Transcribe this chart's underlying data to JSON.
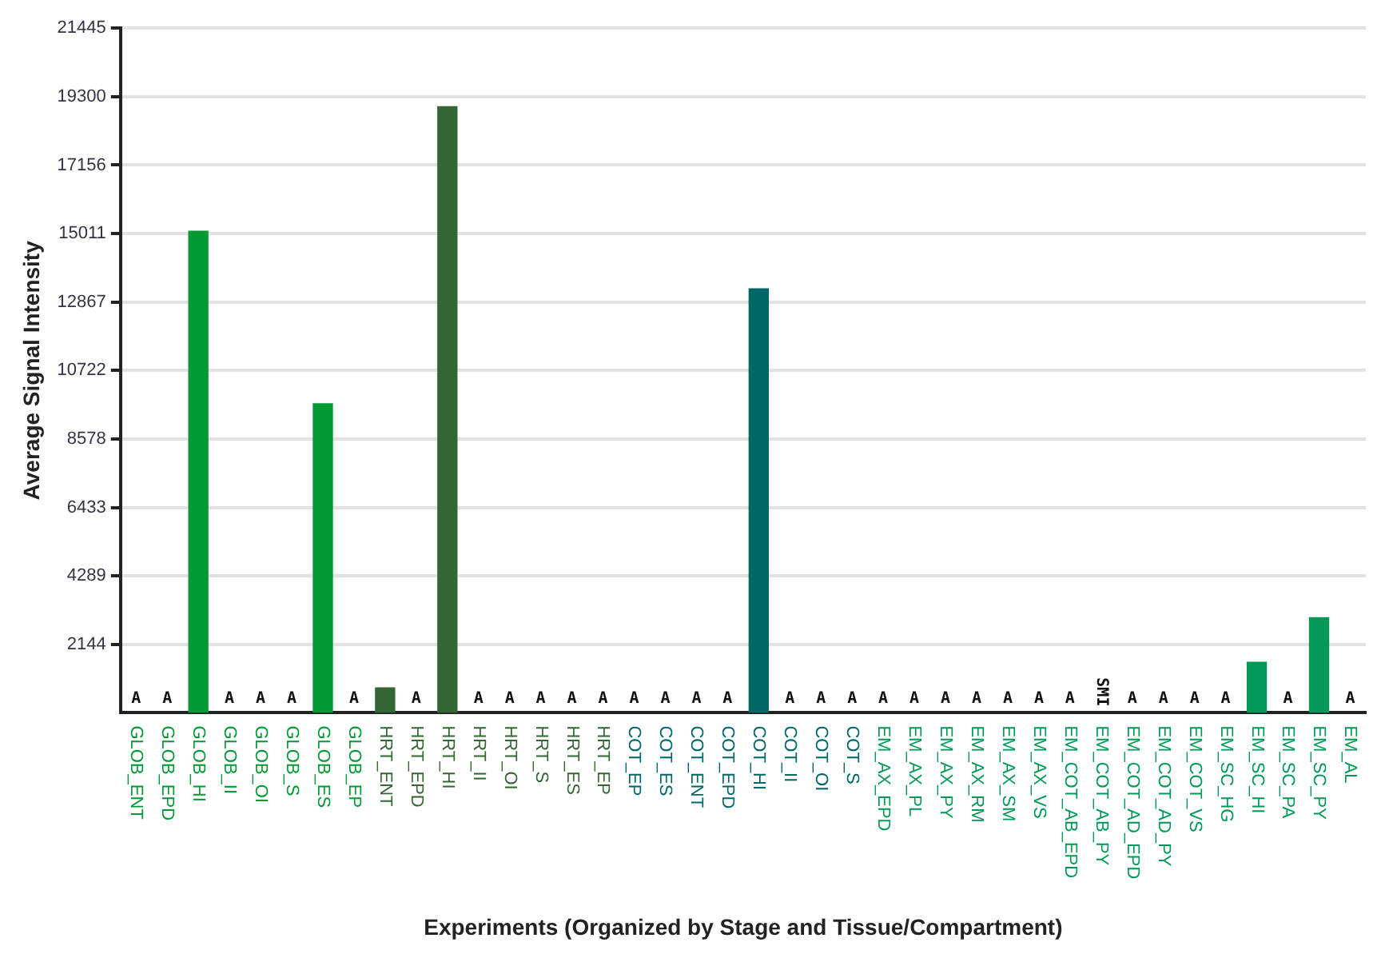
{
  "chart_data": {
    "type": "bar",
    "xlabel": "Experiments (Organized by Stage and Tissue/Compartment)",
    "ylabel": "Average Signal Intensity",
    "categories": [
      "GLOB_ENT",
      "GLOB_EPD",
      "GLOB_HI",
      "GLOB_II",
      "GLOB_OI",
      "GLOB_S",
      "GLOB_ES",
      "GLOB_EP",
      "HRT_ENT",
      "HRT_EPD",
      "HRT_HI",
      "HRT_II",
      "HRT_OI",
      "HRT_S",
      "HRT_ES",
      "HRT_EP",
      "COT_EP",
      "COT_ES",
      "COT_ENT",
      "COT_EPD",
      "COT_HI",
      "COT_II",
      "COT_OI",
      "COT_S",
      "EM_AX_EPD",
      "EM_AX_PL",
      "EM_AX_PY",
      "EM_AX_RM",
      "EM_AX_SM",
      "EM_AX_VS",
      "EM_COT_AB_EPD",
      "EM_COT_AB_PY",
      "EM_COT_AD_EPD",
      "EM_COT_AD_PY",
      "EM_COT_VS",
      "EM_SC_HG",
      "EM_SC_HI",
      "EM_SC_PA",
      "EM_SC_PY",
      "EM_AL"
    ],
    "values": [
      0,
      0,
      15100,
      0,
      0,
      0,
      9700,
      0,
      800,
      0,
      19000,
      0,
      0,
      0,
      0,
      0,
      0,
      0,
      0,
      0,
      13300,
      0,
      0,
      0,
      0,
      0,
      0,
      0,
      0,
      0,
      0,
      0,
      0,
      0,
      0,
      0,
      1600,
      0,
      3000,
      0
    ],
    "value_labels": [
      "A",
      "A",
      null,
      "A",
      "A",
      "A",
      null,
      "A",
      null,
      "A",
      null,
      "A",
      "A",
      "A",
      "A",
      "A",
      "A",
      "A",
      "A",
      "A",
      null,
      "A",
      "A",
      "A",
      "A",
      "A",
      "A",
      "A",
      "A",
      "A",
      "A",
      "SMI",
      "A",
      "A",
      "A",
      "A",
      null,
      "A",
      null,
      "A"
    ],
    "colors": [
      "#009933",
      "#009933",
      "#009933",
      "#009933",
      "#009933",
      "#009933",
      "#009933",
      "#009933",
      "#336633",
      "#336633",
      "#336633",
      "#336633",
      "#336633",
      "#336633",
      "#336633",
      "#336633",
      "#006666",
      "#006666",
      "#006666",
      "#006666",
      "#006666",
      "#006666",
      "#006666",
      "#006666",
      "#009955",
      "#009955",
      "#009955",
      "#009955",
      "#009955",
      "#009955",
      "#009955",
      "#009955",
      "#009955",
      "#009955",
      "#009955",
      "#009955",
      "#009955",
      "#009955",
      "#009955",
      "#009955"
    ],
    "ylim": [
      0,
      21445
    ],
    "yticks": [
      2144,
      4289,
      6433,
      8578,
      10722,
      12867,
      15011,
      17156,
      19300,
      21445
    ],
    "grid": "y",
    "legend": false
  }
}
